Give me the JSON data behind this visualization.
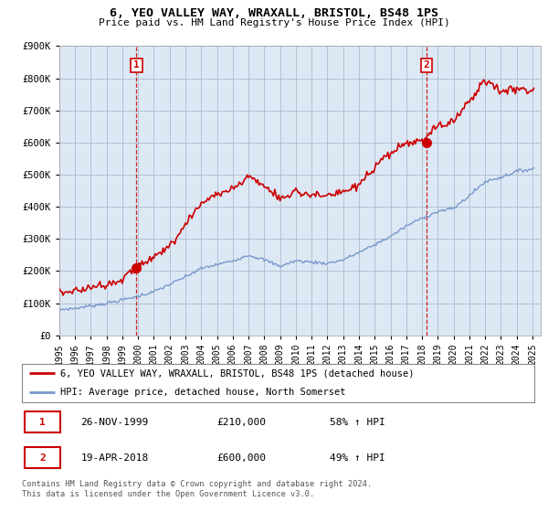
{
  "title": "6, YEO VALLEY WAY, WRAXALL, BRISTOL, BS48 1PS",
  "subtitle": "Price paid vs. HM Land Registry's House Price Index (HPI)",
  "ylabel_ticks": [
    "£0",
    "£100K",
    "£200K",
    "£300K",
    "£400K",
    "£500K",
    "£600K",
    "£700K",
    "£800K",
    "£900K"
  ],
  "ylim": [
    0,
    900000
  ],
  "xlim_start": 1995.0,
  "xlim_end": 2025.5,
  "xtick_years": [
    1995,
    1996,
    1997,
    1998,
    1999,
    2000,
    2001,
    2002,
    2003,
    2004,
    2005,
    2006,
    2007,
    2008,
    2009,
    2010,
    2011,
    2012,
    2013,
    2014,
    2015,
    2016,
    2017,
    2018,
    2019,
    2020,
    2021,
    2022,
    2023,
    2024,
    2025
  ],
  "sale1_x": 1999.9,
  "sale1_y": 210000,
  "sale2_x": 2018.3,
  "sale2_y": 600000,
  "legend_line1": "6, YEO VALLEY WAY, WRAXALL, BRISTOL, BS48 1PS (detached house)",
  "legend_line2": "HPI: Average price, detached house, North Somerset",
  "table_row1": [
    "1",
    "26-NOV-1999",
    "£210,000",
    "58% ↑ HPI"
  ],
  "table_row2": [
    "2",
    "19-APR-2018",
    "£600,000",
    "49% ↑ HPI"
  ],
  "footer": "Contains HM Land Registry data © Crown copyright and database right 2024.\nThis data is licensed under the Open Government Licence v3.0.",
  "red_color": "#cc0000",
  "blue_color": "#7799cc",
  "plot_bg": "#dde8f5",
  "background_color": "#ffffff",
  "grid_color": "#aabbcc",
  "vline_color": "#cc0000",
  "hpi_anchors": {
    "1995": 80000,
    "1996": 84000,
    "1997": 92000,
    "1998": 100000,
    "1999": 110000,
    "2000": 122000,
    "2001": 136000,
    "2002": 158000,
    "2003": 182000,
    "2004": 208000,
    "2005": 220000,
    "2006": 232000,
    "2007": 250000,
    "2008": 235000,
    "2009": 215000,
    "2010": 232000,
    "2011": 228000,
    "2012": 224000,
    "2013": 235000,
    "2014": 258000,
    "2015": 282000,
    "2016": 308000,
    "2017": 340000,
    "2018": 365000,
    "2019": 385000,
    "2020": 395000,
    "2021": 435000,
    "2022": 478000,
    "2023": 492000,
    "2024": 510000,
    "2025": 518000
  },
  "prop_anchors": {
    "1995": 135000,
    "1996": 138000,
    "1997": 150000,
    "1998": 160000,
    "1999": 175000,
    "2000": 215000,
    "2001": 240000,
    "2002": 280000,
    "2003": 345000,
    "2004": 410000,
    "2005": 440000,
    "2006": 455000,
    "2007": 495000,
    "2008": 465000,
    "2009": 425000,
    "2010": 448000,
    "2011": 438000,
    "2012": 432000,
    "2013": 445000,
    "2014": 468000,
    "2015": 518000,
    "2016": 568000,
    "2017": 595000,
    "2018": 605000,
    "2019": 650000,
    "2020": 668000,
    "2021": 730000,
    "2022": 795000,
    "2023": 760000,
    "2024": 770000,
    "2025": 760000
  }
}
